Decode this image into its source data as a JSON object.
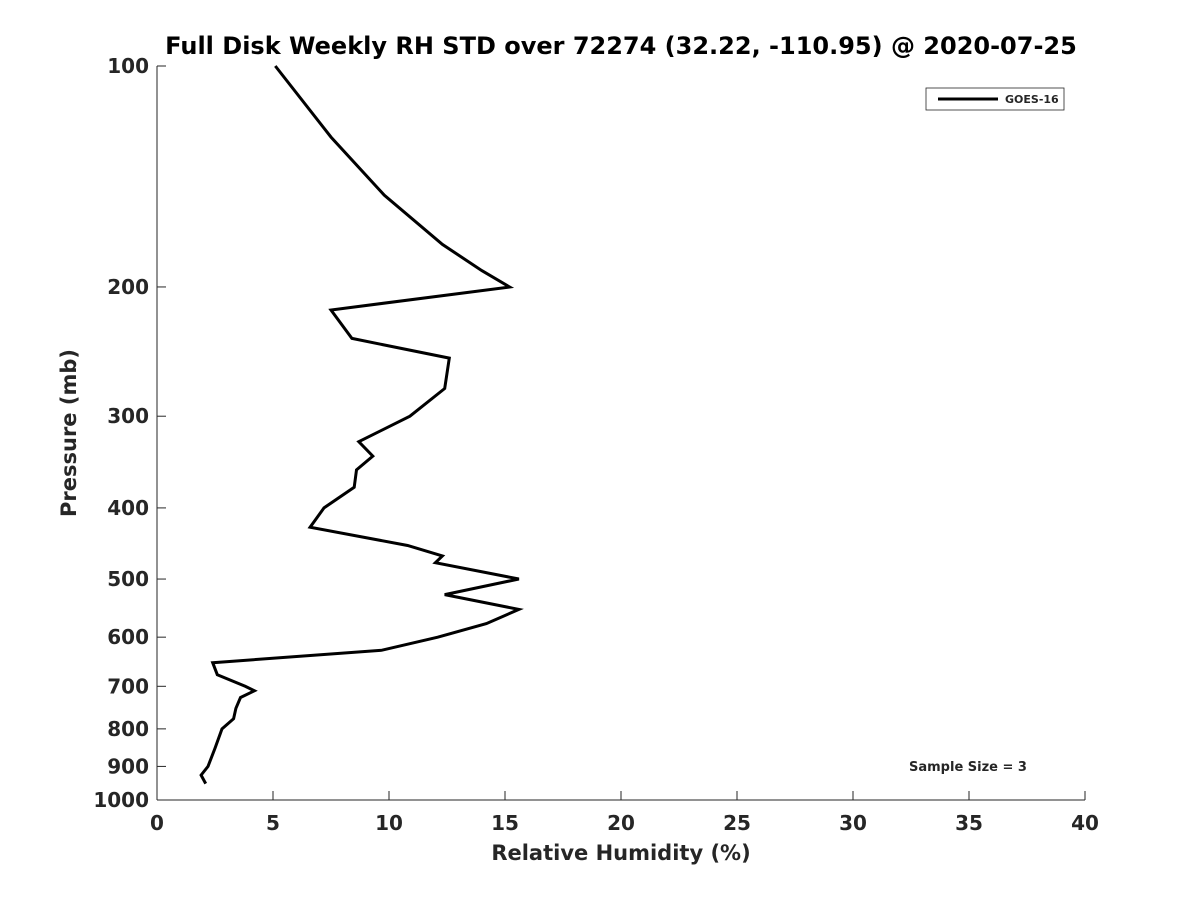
{
  "chart_data": {
    "type": "line",
    "title": "Full Disk Weekly RH STD over 72274 (32.22, -110.95) @ 2020-07-25",
    "xlabel": "Relative Humidity (%)",
    "ylabel": "Pressure (mb)",
    "xlim": [
      0,
      40
    ],
    "ylim": [
      1000,
      100
    ],
    "yscale": "log",
    "yreversed": true,
    "xticks": [
      0,
      5,
      10,
      15,
      20,
      25,
      30,
      35,
      40
    ],
    "yticks": [
      100,
      200,
      300,
      400,
      500,
      600,
      700,
      800,
      900,
      1000
    ],
    "grid": false,
    "legend_position": "top-right",
    "annotation": "Sample Size = 3",
    "series": [
      {
        "name": "GOES-16",
        "color": "#000000",
        "points": [
          {
            "x": 5.1,
            "p": 100
          },
          {
            "x": 7.5,
            "p": 125
          },
          {
            "x": 9.8,
            "p": 150
          },
          {
            "x": 12.3,
            "p": 175
          },
          {
            "x": 14.0,
            "p": 190
          },
          {
            "x": 15.2,
            "p": 200
          },
          {
            "x": 7.5,
            "p": 215
          },
          {
            "x": 8.4,
            "p": 235
          },
          {
            "x": 12.6,
            "p": 250
          },
          {
            "x": 12.4,
            "p": 275
          },
          {
            "x": 10.9,
            "p": 300
          },
          {
            "x": 8.7,
            "p": 325
          },
          {
            "x": 9.3,
            "p": 340
          },
          {
            "x": 8.6,
            "p": 355
          },
          {
            "x": 8.5,
            "p": 375
          },
          {
            "x": 7.2,
            "p": 400
          },
          {
            "x": 6.6,
            "p": 425
          },
          {
            "x": 10.8,
            "p": 450
          },
          {
            "x": 12.3,
            "p": 465
          },
          {
            "x": 12.0,
            "p": 475
          },
          {
            "x": 15.6,
            "p": 500
          },
          {
            "x": 12.4,
            "p": 525
          },
          {
            "x": 15.6,
            "p": 550
          },
          {
            "x": 14.2,
            "p": 575
          },
          {
            "x": 12.1,
            "p": 600
          },
          {
            "x": 9.7,
            "p": 625
          },
          {
            "x": 2.4,
            "p": 650
          },
          {
            "x": 2.6,
            "p": 675
          },
          {
            "x": 3.8,
            "p": 700
          },
          {
            "x": 4.2,
            "p": 710
          },
          {
            "x": 3.6,
            "p": 725
          },
          {
            "x": 3.4,
            "p": 750
          },
          {
            "x": 3.3,
            "p": 775
          },
          {
            "x": 2.8,
            "p": 800
          },
          {
            "x": 2.5,
            "p": 850
          },
          {
            "x": 2.2,
            "p": 900
          },
          {
            "x": 1.9,
            "p": 925
          },
          {
            "x": 2.1,
            "p": 950
          }
        ]
      }
    ]
  }
}
